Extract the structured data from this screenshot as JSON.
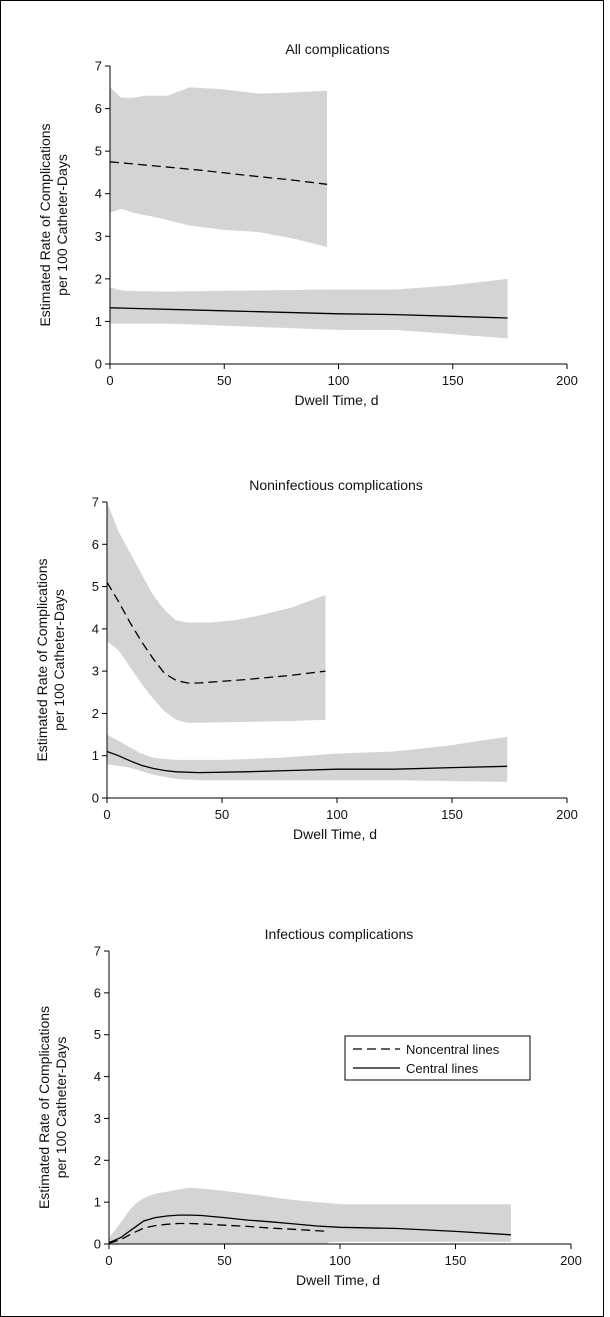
{
  "chart_data": [
    {
      "type": "line",
      "title": "All complications",
      "xlabel": "Dwell Time, d",
      "ylabel": [
        "Estimated Rate of Complications",
        "per 100 Catheter-Days"
      ],
      "xlim": [
        0,
        200
      ],
      "ylim": [
        0,
        7
      ],
      "xticks": [
        0,
        50,
        100,
        150,
        200
      ],
      "yticks": [
        0,
        1,
        2,
        3,
        4,
        5,
        6,
        7
      ],
      "series": [
        {
          "style": "dashed",
          "x": [
            0,
            20,
            40,
            60,
            80,
            95
          ],
          "y": [
            4.75,
            4.65,
            4.55,
            4.43,
            4.32,
            4.22
          ],
          "lower": [
            [
              0,
              3.55
            ],
            [
              5,
              3.65
            ],
            [
              10,
              3.55
            ],
            [
              20,
              3.45
            ],
            [
              35,
              3.25
            ],
            [
              50,
              3.15
            ],
            [
              65,
              3.1
            ],
            [
              80,
              2.95
            ],
            [
              95,
              2.75
            ]
          ],
          "upper": [
            [
              0,
              6.5
            ],
            [
              5,
              6.25
            ],
            [
              10,
              6.25
            ],
            [
              15,
              6.3
            ],
            [
              25,
              6.3
            ],
            [
              35,
              6.5
            ],
            [
              50,
              6.45
            ],
            [
              65,
              6.35
            ],
            [
              80,
              6.38
            ],
            [
              95,
              6.42
            ]
          ]
        },
        {
          "style": "solid",
          "x": [
            0,
            50,
            100,
            125,
            150,
            174
          ],
          "y": [
            1.32,
            1.25,
            1.18,
            1.16,
            1.12,
            1.08
          ],
          "lower": [
            [
              0,
              0.95
            ],
            [
              25,
              0.95
            ],
            [
              50,
              0.9
            ],
            [
              75,
              0.85
            ],
            [
              100,
              0.8
            ],
            [
              125,
              0.8
            ],
            [
              150,
              0.7
            ],
            [
              174,
              0.6
            ]
          ],
          "upper": [
            [
              0,
              1.8
            ],
            [
              5,
              1.72
            ],
            [
              25,
              1.7
            ],
            [
              50,
              1.72
            ],
            [
              100,
              1.75
            ],
            [
              125,
              1.75
            ],
            [
              150,
              1.85
            ],
            [
              174,
              2.0
            ]
          ]
        }
      ]
    },
    {
      "type": "line",
      "title": "Noninfectious complications",
      "xlabel": "Dwell Time, d",
      "ylabel": [
        "Estimated Rate of Complications",
        "per 100 Catheter-Days"
      ],
      "xlim": [
        0,
        200
      ],
      "ylim": [
        0,
        7
      ],
      "xticks": [
        0,
        50,
        100,
        150,
        200
      ],
      "yticks": [
        0,
        1,
        2,
        3,
        4,
        5,
        6,
        7
      ],
      "series": [
        {
          "style": "dashed",
          "x": [
            0,
            5,
            10,
            15,
            20,
            25,
            30,
            35,
            40,
            50,
            60,
            70,
            80,
            95
          ],
          "y": [
            5.1,
            4.65,
            4.15,
            3.7,
            3.3,
            2.95,
            2.78,
            2.72,
            2.72,
            2.76,
            2.8,
            2.85,
            2.9,
            3.0
          ],
          "lower": [
            [
              0,
              3.7
            ],
            [
              5,
              3.5
            ],
            [
              10,
              3.1
            ],
            [
              15,
              2.7
            ],
            [
              20,
              2.35
            ],
            [
              25,
              2.05
            ],
            [
              30,
              1.85
            ],
            [
              35,
              1.78
            ],
            [
              40,
              1.78
            ],
            [
              60,
              1.8
            ],
            [
              80,
              1.82
            ],
            [
              95,
              1.85
            ]
          ],
          "upper": [
            [
              0,
              7.0
            ],
            [
              5,
              6.3
            ],
            [
              10,
              5.8
            ],
            [
              15,
              5.3
            ],
            [
              20,
              4.8
            ],
            [
              25,
              4.45
            ],
            [
              30,
              4.2
            ],
            [
              35,
              4.15
            ],
            [
              45,
              4.15
            ],
            [
              55,
              4.2
            ],
            [
              65,
              4.3
            ],
            [
              80,
              4.5
            ],
            [
              95,
              4.8
            ]
          ]
        },
        {
          "style": "solid",
          "x": [
            0,
            5,
            10,
            15,
            20,
            25,
            30,
            40,
            60,
            80,
            100,
            125,
            150,
            174
          ],
          "y": [
            1.1,
            1.0,
            0.88,
            0.77,
            0.7,
            0.65,
            0.62,
            0.6,
            0.62,
            0.65,
            0.68,
            0.68,
            0.72,
            0.75
          ],
          "lower": [
            [
              0,
              0.8
            ],
            [
              10,
              0.72
            ],
            [
              20,
              0.55
            ],
            [
              30,
              0.45
            ],
            [
              40,
              0.42
            ],
            [
              60,
              0.42
            ],
            [
              100,
              0.42
            ],
            [
              125,
              0.42
            ],
            [
              150,
              0.4
            ],
            [
              174,
              0.38
            ]
          ],
          "upper": [
            [
              0,
              1.5
            ],
            [
              5,
              1.35
            ],
            [
              10,
              1.2
            ],
            [
              15,
              1.05
            ],
            [
              20,
              0.95
            ],
            [
              30,
              0.9
            ],
            [
              50,
              0.9
            ],
            [
              75,
              0.95
            ],
            [
              100,
              1.05
            ],
            [
              125,
              1.1
            ],
            [
              150,
              1.25
            ],
            [
              174,
              1.45
            ]
          ]
        }
      ]
    },
    {
      "type": "line",
      "title": "Infectious complications",
      "xlabel": "Dwell Time, d",
      "ylabel": [
        "Estimated Rate of Complications",
        "per 100 Catheter-Days"
      ],
      "xlim": [
        0,
        200
      ],
      "ylim": [
        0,
        7
      ],
      "xticks": [
        0,
        50,
        100,
        150,
        200
      ],
      "yticks": [
        0,
        1,
        2,
        3,
        4,
        5,
        6,
        7
      ],
      "legend": {
        "placement": "upper-right",
        "entries": [
          {
            "label": "Noncentral lines",
            "style": "dashed"
          },
          {
            "label": "Central lines",
            "style": "solid"
          }
        ]
      },
      "series": [
        {
          "style": "dashed",
          "x": [
            0,
            5,
            10,
            15,
            20,
            25,
            30,
            35,
            40,
            50,
            60,
            70,
            80,
            95
          ],
          "y": [
            0.02,
            0.1,
            0.25,
            0.38,
            0.44,
            0.47,
            0.49,
            0.49,
            0.48,
            0.45,
            0.42,
            0.38,
            0.35,
            0.3
          ],
          "lower": [
            [
              0,
              0.0
            ],
            [
              95,
              0.0
            ]
          ],
          "upper": [
            [
              0,
              0.1
            ],
            [
              5,
              0.4
            ],
            [
              10,
              0.8
            ],
            [
              15,
              1.05
            ],
            [
              20,
              1.15
            ],
            [
              30,
              1.25
            ],
            [
              35,
              1.3
            ],
            [
              45,
              1.25
            ],
            [
              60,
              1.15
            ],
            [
              80,
              1.05
            ],
            [
              95,
              0.95
            ]
          ]
        },
        {
          "style": "solid",
          "x": [
            0,
            5,
            10,
            15,
            20,
            25,
            30,
            35,
            40,
            50,
            60,
            70,
            80,
            90,
            100,
            125,
            150,
            174
          ],
          "y": [
            0.03,
            0.15,
            0.35,
            0.55,
            0.63,
            0.67,
            0.69,
            0.69,
            0.68,
            0.63,
            0.57,
            0.53,
            0.48,
            0.43,
            0.4,
            0.37,
            0.3,
            0.22
          ],
          "lower": [
            [
              0,
              0.0
            ],
            [
              100,
              0.05
            ],
            [
              174,
              0.05
            ]
          ],
          "upper": [
            [
              0,
              0.15
            ],
            [
              5,
              0.5
            ],
            [
              10,
              0.9
            ],
            [
              15,
              1.1
            ],
            [
              20,
              1.2
            ],
            [
              30,
              1.3
            ],
            [
              35,
              1.35
            ],
            [
              45,
              1.3
            ],
            [
              60,
              1.2
            ],
            [
              80,
              1.05
            ],
            [
              100,
              0.95
            ],
            [
              174,
              0.95
            ]
          ]
        }
      ]
    }
  ]
}
